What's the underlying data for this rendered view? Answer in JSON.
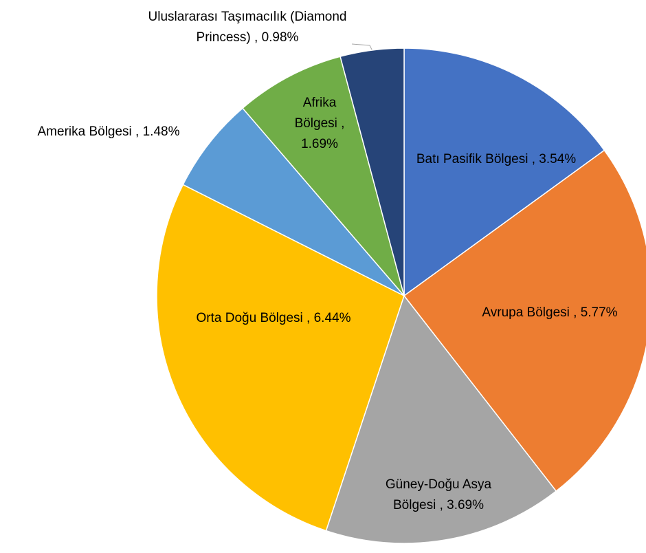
{
  "chart_data": {
    "type": "pie",
    "values": [
      3.54,
      5.77,
      3.69,
      6.44,
      1.48,
      1.69,
      0.98
    ],
    "value_labels": [
      "Batı Pasifik Bölgesi , 3.54%",
      "Avrupa Bölgesi , 5.77%",
      "Güney-Doğu Asya Bölgesi , 3.69%",
      "Orta Doğu Bölgesi , 6.44%",
      "Amerika Bölgesi , 1.48%",
      "Afrika Bölgesi , 1.69%",
      "Uluslararası Taşımacılık (Diamond Princess) , 0.98%"
    ],
    "colors": [
      "#4472c4",
      "#ed7d31",
      "#a5a5a5",
      "#ffc000",
      "#5b9bd5",
      "#70ad47",
      "#264478"
    ]
  }
}
